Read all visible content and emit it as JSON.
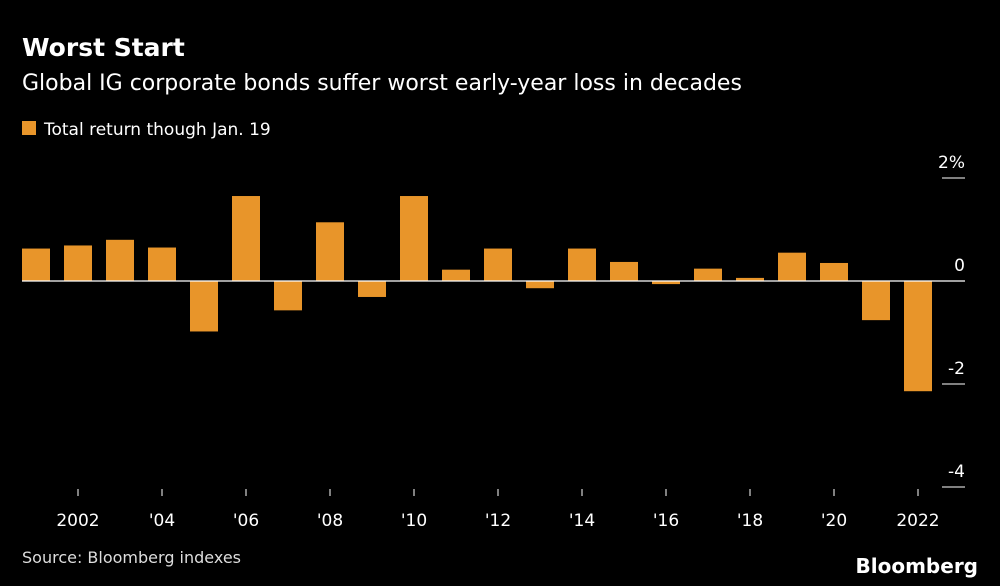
{
  "chart_data": {
    "type": "bar",
    "title": "Worst Start",
    "subtitle": "Global IG corporate bonds suffer worst early-year loss in decades",
    "categories": [
      null,
      "2002",
      null,
      "'04",
      null,
      "'06",
      null,
      "'08",
      null,
      "'10",
      null,
      "'12",
      null,
      "'14",
      null,
      "'16",
      null,
      "'18",
      null,
      "'20",
      null,
      "2022"
    ],
    "series": [
      {
        "name": "Total return though Jan. 19",
        "color": "#e8952a",
        "values": [
          0.63,
          0.69,
          0.8,
          0.65,
          -0.98,
          1.65,
          -0.57,
          1.14,
          -0.31,
          1.65,
          0.22,
          0.63,
          -0.14,
          0.63,
          0.37,
          -0.06,
          0.24,
          0.06,
          0.55,
          0.35,
          -0.76,
          -2.14
        ]
      }
    ],
    "ylim": [
      -4,
      2
    ],
    "yticks": [
      {
        "value": 2,
        "label": "2%"
      },
      0,
      -2,
      -4
    ],
    "source": "Source: Bloomberg indexes",
    "brand": "Bloomberg"
  }
}
